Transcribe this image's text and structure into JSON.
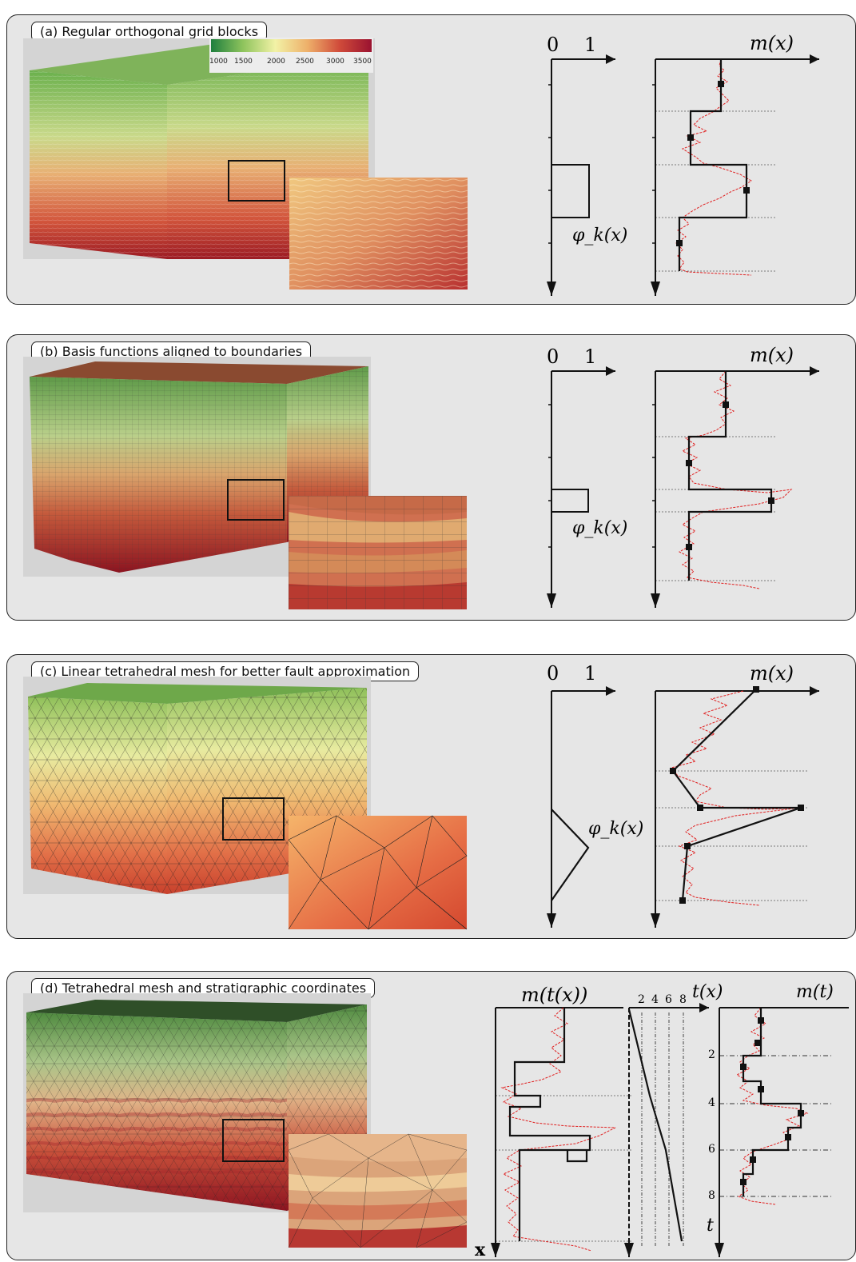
{
  "panels": [
    {
      "id": "a",
      "title": "(a) Regular orthogonal grid blocks",
      "axis_zero": "0",
      "axis_one": "1",
      "basis_label": "φ_k(x)",
      "model_label": "m(x)",
      "colorbar": {
        "ticks": [
          "1000",
          "1500",
          "2000",
          "2500",
          "3000",
          "3500"
        ]
      }
    },
    {
      "id": "b",
      "title": "(b) Basis functions aligned to boundaries",
      "axis_zero": "0",
      "axis_one": "1",
      "basis_label": "φ_k(x)",
      "model_label": "m(x)"
    },
    {
      "id": "c",
      "title": "(c) Linear tetrahedral mesh for better fault approximation",
      "axis_zero": "0",
      "axis_one": "1",
      "basis_label": "φ_k(x)",
      "model_label": "m(x)"
    },
    {
      "id": "d",
      "title": "(d) Tetrahedral mesh and stratigraphic coordinates",
      "model_tx_label": "m(t(x))",
      "tx_label": "t(x)",
      "mt_label": "m(t)",
      "x_axis_label": "x",
      "t_axis_label": "t",
      "tx_ticks": [
        "2",
        "4",
        "6",
        "8"
      ],
      "t_ticks": [
        "2",
        "4",
        "6",
        "8"
      ]
    }
  ],
  "colors": {
    "panel_bg": "#e6e6e6",
    "curve_red": "#e02020",
    "ink": "#111111"
  }
}
